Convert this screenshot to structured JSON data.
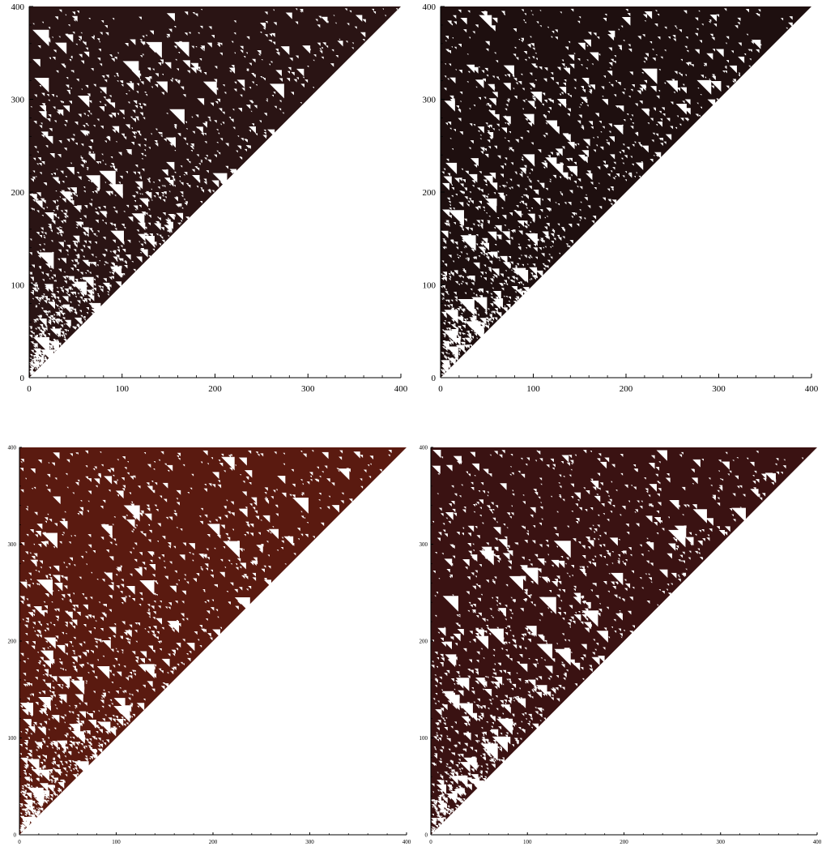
{
  "chart_data": [
    {
      "type": "heatmap",
      "xlim": [
        0,
        400
      ],
      "ylim": [
        0,
        400
      ],
      "x_ticks": [
        "0",
        "100",
        "200",
        "300",
        "400"
      ],
      "y_ticks": [
        "0",
        "100",
        "200",
        "300",
        "400"
      ],
      "fill_color": "#2a1414",
      "pattern": "triangular cellular automaton, lower-left triangle filled"
    },
    {
      "type": "heatmap",
      "xlim": [
        0,
        400
      ],
      "ylim": [
        0,
        400
      ],
      "x_ticks": [
        "0",
        "100",
        "200",
        "300",
        "400"
      ],
      "y_ticks": [
        "0",
        "100",
        "200",
        "300",
        "400"
      ],
      "fill_color": "#1e0f0f",
      "pattern": "triangular cellular automaton, lower-left triangle filled"
    },
    {
      "type": "heatmap",
      "xlim": [
        0,
        400
      ],
      "ylim": [
        0,
        400
      ],
      "x_ticks": [
        "0",
        "100",
        "200",
        "300",
        "400"
      ],
      "y_ticks": [
        "0",
        "100",
        "200",
        "300",
        "400"
      ],
      "fill_color": "#5a1a10",
      "pattern": "triangular cellular automaton, lower-left triangle filled"
    },
    {
      "type": "heatmap",
      "xlim": [
        0,
        400
      ],
      "ylim": [
        0,
        400
      ],
      "x_ticks": [
        "0",
        "100",
        "200",
        "300",
        "400"
      ],
      "y_ticks": [
        "0",
        "100",
        "200",
        "300",
        "400"
      ],
      "fill_color": "#3a1212",
      "pattern": "triangular cellular automaton, lower-left triangle filled"
    }
  ]
}
